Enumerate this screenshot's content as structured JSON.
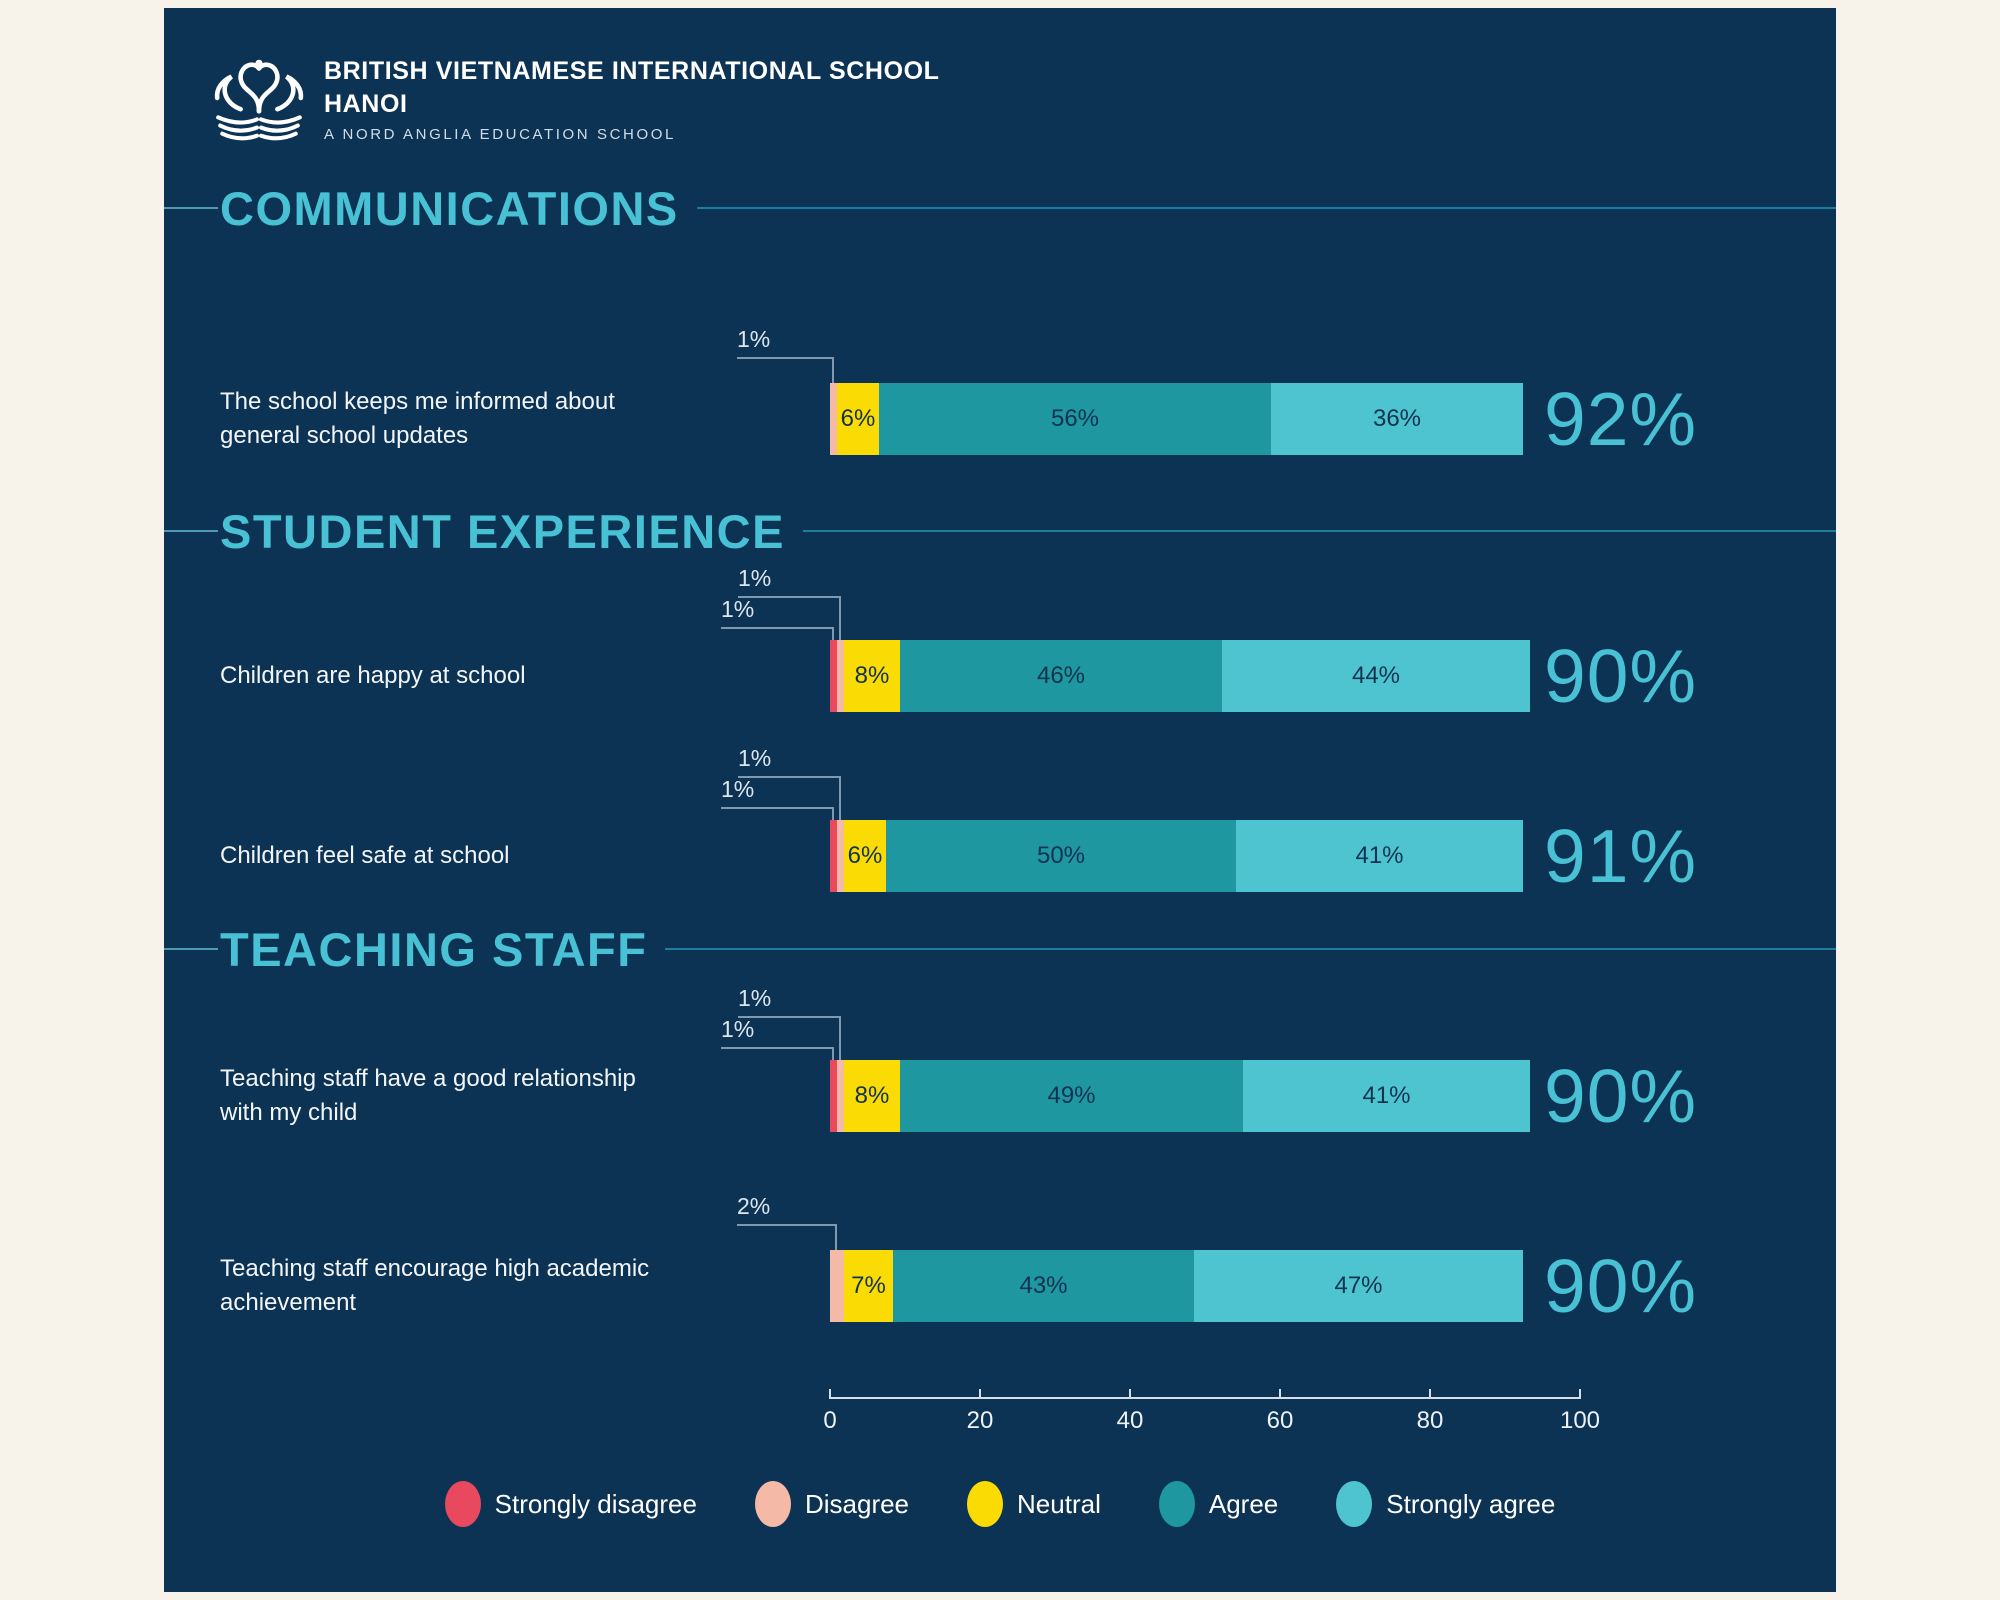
{
  "page": {
    "background_color": "#f7f3ea",
    "card_color": "#0d3354",
    "accent_color": "#49c1d5"
  },
  "header": {
    "school_name_line1": "BRITISH VIETNAMESE INTERNATIONAL SCHOOL",
    "school_name_line2": "HANOI",
    "tagline": "A NORD ANGLIA EDUCATION SCHOOL",
    "logo_icon": "swan-over-open-book-logo"
  },
  "chart_data": {
    "type": "bar",
    "orientation": "horizontal",
    "stacked": true,
    "axis": {
      "min": 0,
      "max": 100,
      "ticks": [
        0,
        20,
        40,
        60,
        80,
        100
      ],
      "grid": false
    },
    "legend_position": "bottom",
    "legend": [
      {
        "key": "strongly_disagree",
        "label": "Strongly disagree",
        "color": "#e8495f"
      },
      {
        "key": "disagree",
        "label": "Disagree",
        "color": "#f5b9a7"
      },
      {
        "key": "neutral",
        "label": "Neutral",
        "color": "#fadc04"
      },
      {
        "key": "agree",
        "label": "Agree",
        "color": "#1e97a0"
      },
      {
        "key": "strongly_agree",
        "label": "Strongly agree",
        "color": "#4dc4cf"
      }
    ],
    "sections": [
      {
        "title": "COMMUNICATIONS",
        "rows": [
          {
            "label": "The school keeps me informed about general school updates",
            "values": {
              "strongly_disagree": 0,
              "disagree": 1,
              "neutral": 6,
              "agree": 56,
              "strongly_agree": 36
            },
            "callouts": [
              {
                "label": "1%",
                "target": "disagree"
              }
            ],
            "total": "92%"
          }
        ]
      },
      {
        "title": "STUDENT EXPERIENCE",
        "rows": [
          {
            "label": "Children are happy at school",
            "values": {
              "strongly_disagree": 1,
              "disagree": 1,
              "neutral": 8,
              "agree": 46,
              "strongly_agree": 44
            },
            "callouts": [
              {
                "label": "1%",
                "target": "disagree"
              },
              {
                "label": "1%",
                "target": "strongly_disagree"
              }
            ],
            "total": "90%"
          },
          {
            "label": "Children feel safe at school",
            "values": {
              "strongly_disagree": 1,
              "disagree": 1,
              "neutral": 6,
              "agree": 50,
              "strongly_agree": 41
            },
            "callouts": [
              {
                "label": "1%",
                "target": "disagree"
              },
              {
                "label": "1%",
                "target": "strongly_disagree"
              }
            ],
            "total": "91%"
          }
        ]
      },
      {
        "title": "TEACHING STAFF",
        "rows": [
          {
            "label": "Teaching staff have a good relationship with my child",
            "values": {
              "strongly_disagree": 1,
              "disagree": 1,
              "neutral": 8,
              "agree": 49,
              "strongly_agree": 41
            },
            "callouts": [
              {
                "label": "1%",
                "target": "disagree"
              },
              {
                "label": "1%",
                "target": "strongly_disagree"
              }
            ],
            "total": "90%"
          },
          {
            "label": "Teaching staff encourage high academic achievement",
            "values": {
              "strongly_disagree": 0,
              "disagree": 2,
              "neutral": 7,
              "agree": 43,
              "strongly_agree": 47
            },
            "callouts": [
              {
                "label": "2%",
                "target": "disagree"
              }
            ],
            "total": "90%"
          }
        ]
      }
    ],
    "in_bar_label_min_pct": 6
  }
}
